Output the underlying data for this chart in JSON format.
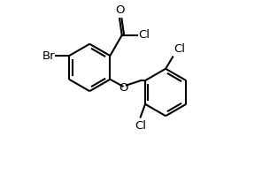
{
  "bg_color": "#ffffff",
  "bond_color": "#000000",
  "atom_color": "#000000",
  "line_width": 1.5,
  "font_size": 9.5,
  "fig_width": 2.96,
  "fig_height": 1.98,
  "dpi": 100,
  "xlim": [
    -3.0,
    6.5
  ],
  "ylim": [
    -4.5,
    2.8
  ]
}
